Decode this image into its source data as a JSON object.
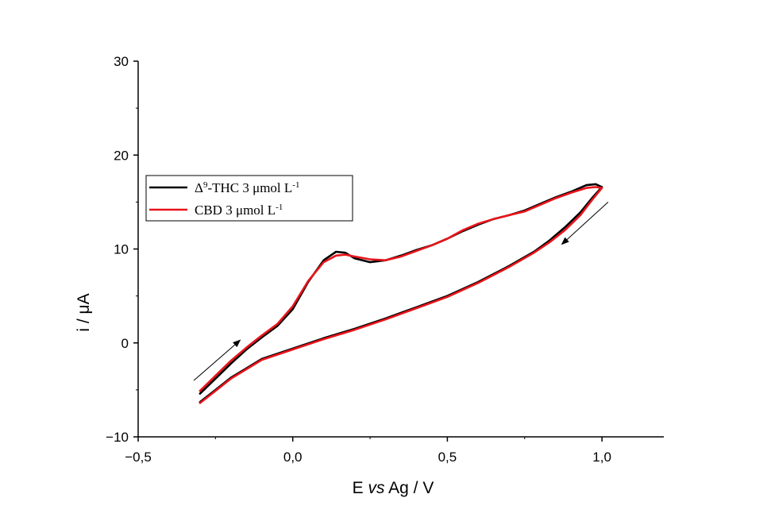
{
  "chart_data": {
    "type": "line",
    "xlabel_prefix": "E ",
    "xlabel_italic": "vs",
    "xlabel_suffix": " Ag / V",
    "ylabel": "i / μA",
    "xlim": [
      -0.5,
      1.2
    ],
    "ylim": [
      -10,
      30
    ],
    "x_ticks": [
      -0.5,
      0.0,
      0.5,
      1.0
    ],
    "x_tick_labels": [
      "−0,5",
      "0,0",
      "0,5",
      "1,0"
    ],
    "y_ticks": [
      -10,
      0,
      10,
      20,
      30
    ],
    "y_tick_labels": [
      "−10",
      "0",
      "10",
      "20",
      "30"
    ],
    "grid": false,
    "legend_position": "upper-left",
    "series": [
      {
        "name_main": "Δ",
        "name_sup": "9",
        "name_rest": "-THC 3 μmol L",
        "name_exp": "-1",
        "color": "#000000",
        "points": [
          [
            -0.3,
            -5.4
          ],
          [
            -0.25,
            -3.8
          ],
          [
            -0.2,
            -2.2
          ],
          [
            -0.15,
            -0.7
          ],
          [
            -0.1,
            0.6
          ],
          [
            -0.05,
            1.8
          ],
          [
            0.0,
            3.6
          ],
          [
            0.05,
            6.5
          ],
          [
            0.1,
            8.8
          ],
          [
            0.14,
            9.7
          ],
          [
            0.17,
            9.6
          ],
          [
            0.2,
            9.0
          ],
          [
            0.25,
            8.6
          ],
          [
            0.3,
            8.8
          ],
          [
            0.35,
            9.3
          ],
          [
            0.4,
            9.9
          ],
          [
            0.45,
            10.4
          ],
          [
            0.5,
            11.1
          ],
          [
            0.55,
            11.9
          ],
          [
            0.6,
            12.6
          ],
          [
            0.65,
            13.2
          ],
          [
            0.7,
            13.6
          ],
          [
            0.75,
            14.1
          ],
          [
            0.8,
            14.8
          ],
          [
            0.85,
            15.5
          ],
          [
            0.9,
            16.1
          ],
          [
            0.95,
            16.8
          ],
          [
            0.98,
            16.9
          ],
          [
            1.0,
            16.6
          ],
          [
            0.97,
            15.5
          ],
          [
            0.93,
            13.9
          ],
          [
            0.88,
            12.3
          ],
          [
            0.83,
            10.9
          ],
          [
            0.78,
            9.7
          ],
          [
            0.7,
            8.2
          ],
          [
            0.6,
            6.5
          ],
          [
            0.5,
            5.0
          ],
          [
            0.4,
            3.8
          ],
          [
            0.3,
            2.6
          ],
          [
            0.2,
            1.5
          ],
          [
            0.1,
            0.5
          ],
          [
            0.0,
            -0.6
          ],
          [
            -0.1,
            -1.7
          ],
          [
            -0.15,
            -2.7
          ],
          [
            -0.2,
            -3.7
          ],
          [
            -0.25,
            -5.0
          ],
          [
            -0.3,
            -6.3
          ]
        ]
      },
      {
        "name_main": "CBD 3 μmol L",
        "name_sup": "",
        "name_rest": "",
        "name_exp": "-1",
        "color": "#e8141b",
        "points": [
          [
            -0.3,
            -5.1
          ],
          [
            -0.25,
            -3.5
          ],
          [
            -0.2,
            -1.9
          ],
          [
            -0.15,
            -0.5
          ],
          [
            -0.1,
            0.8
          ],
          [
            -0.05,
            2.0
          ],
          [
            0.0,
            3.9
          ],
          [
            0.05,
            6.6
          ],
          [
            0.1,
            8.6
          ],
          [
            0.14,
            9.3
          ],
          [
            0.17,
            9.4
          ],
          [
            0.2,
            9.2
          ],
          [
            0.25,
            8.9
          ],
          [
            0.3,
            8.8
          ],
          [
            0.35,
            9.2
          ],
          [
            0.4,
            9.8
          ],
          [
            0.45,
            10.4
          ],
          [
            0.5,
            11.1
          ],
          [
            0.55,
            12.0
          ],
          [
            0.6,
            12.7
          ],
          [
            0.65,
            13.2
          ],
          [
            0.7,
            13.6
          ],
          [
            0.75,
            14.0
          ],
          [
            0.8,
            14.7
          ],
          [
            0.85,
            15.4
          ],
          [
            0.9,
            16.0
          ],
          [
            0.95,
            16.5
          ],
          [
            0.98,
            16.6
          ],
          [
            1.0,
            16.5
          ],
          [
            0.97,
            15.3
          ],
          [
            0.93,
            13.6
          ],
          [
            0.88,
            12.0
          ],
          [
            0.83,
            10.7
          ],
          [
            0.78,
            9.6
          ],
          [
            0.7,
            8.1
          ],
          [
            0.6,
            6.4
          ],
          [
            0.5,
            4.9
          ],
          [
            0.4,
            3.7
          ],
          [
            0.3,
            2.5
          ],
          [
            0.2,
            1.4
          ],
          [
            0.1,
            0.4
          ],
          [
            0.0,
            -0.7
          ],
          [
            -0.1,
            -1.8
          ],
          [
            -0.15,
            -2.8
          ],
          [
            -0.2,
            -3.8
          ],
          [
            -0.25,
            -5.1
          ],
          [
            -0.3,
            -6.4
          ]
        ]
      }
    ],
    "annotations": [
      {
        "name": "forward-scan-arrow",
        "from": [
          -0.32,
          -4.0
        ],
        "to": [
          -0.17,
          0.3
        ]
      },
      {
        "name": "reverse-scan-arrow",
        "from": [
          1.02,
          15.0
        ],
        "to": [
          0.87,
          10.5
        ]
      }
    ]
  }
}
